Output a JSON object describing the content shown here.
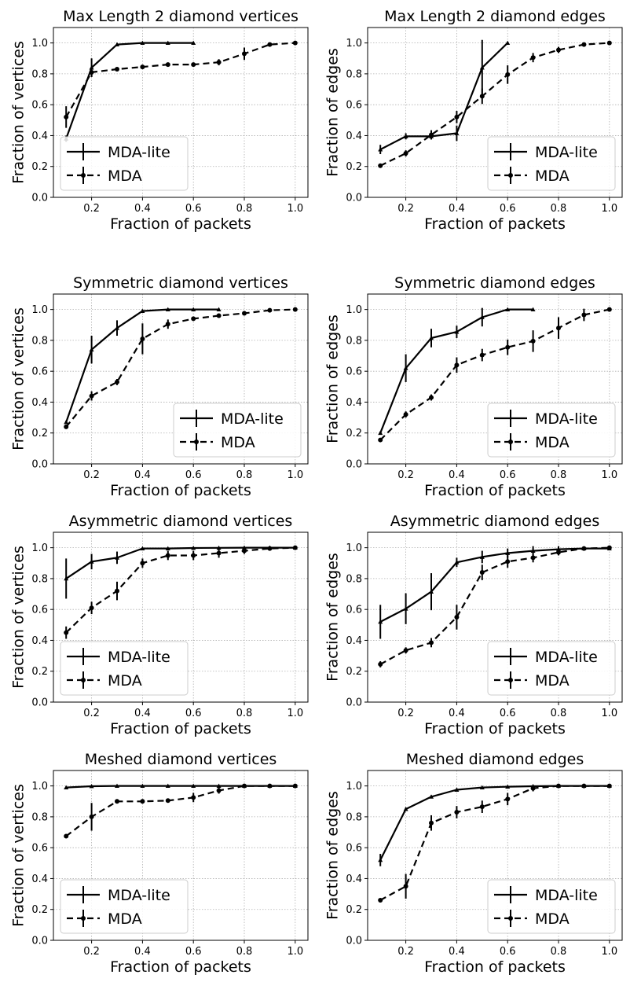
{
  "chart_data": [
    {
      "type": "line",
      "title": "Max Length 2 diamond vertices",
      "xlabel": "Fraction of packets",
      "ylabel": "Fraction of vertices",
      "xlim": [
        0.05,
        1.05
      ],
      "ylim": [
        0.0,
        1.1
      ],
      "xticks": [
        "0.2",
        "0.4",
        "0.6",
        "0.8",
        "1.0"
      ],
      "yticks": [
        "0.0",
        "0.2",
        "0.4",
        "0.6",
        "0.8",
        "1.0"
      ],
      "grid": true,
      "legend": "bottom-left",
      "series": [
        {
          "name": "MDA-lite",
          "style": "solid",
          "marker": "triangle",
          "x": [
            0.1,
            0.2,
            0.3,
            0.4,
            0.5,
            0.6
          ],
          "y": [
            0.38,
            0.84,
            0.99,
            1.0,
            1.0,
            1.0
          ],
          "err": [
            0.02,
            0.06,
            0.01,
            0.0,
            0.0,
            0.0
          ]
        },
        {
          "name": "MDA",
          "style": "dashed",
          "marker": "circle",
          "x": [
            0.1,
            0.2,
            0.3,
            0.4,
            0.5,
            0.6,
            0.7,
            0.8,
            0.9,
            1.0
          ],
          "y": [
            0.52,
            0.81,
            0.83,
            0.845,
            0.86,
            0.86,
            0.875,
            0.93,
            0.99,
            1.0
          ],
          "err": [
            0.07,
            0.03,
            0.01,
            0.01,
            0.01,
            0.01,
            0.02,
            0.04,
            0.01,
            0.0
          ]
        }
      ]
    },
    {
      "type": "line",
      "title": "Max Length 2 diamond edges",
      "xlabel": "Fraction of packets",
      "ylabel": "Fraction of edges",
      "xlim": [
        0.05,
        1.05
      ],
      "ylim": [
        0.0,
        1.1
      ],
      "xticks": [
        "0.2",
        "0.4",
        "0.6",
        "0.8",
        "1.0"
      ],
      "yticks": [
        "0.0",
        "0.2",
        "0.4",
        "0.6",
        "0.8",
        "1.0"
      ],
      "grid": true,
      "legend": "bottom-right",
      "series": [
        {
          "name": "MDA-lite",
          "style": "solid",
          "marker": "triangle",
          "x": [
            0.1,
            0.2,
            0.3,
            0.4,
            0.5,
            0.6
          ],
          "y": [
            0.31,
            0.395,
            0.395,
            0.415,
            0.84,
            1.0
          ],
          "err": [
            0.03,
            0.02,
            0.02,
            0.05,
            0.18,
            0.0
          ]
        },
        {
          "name": "MDA",
          "style": "dashed",
          "marker": "circle",
          "x": [
            0.1,
            0.2,
            0.3,
            0.4,
            0.5,
            0.6,
            0.7,
            0.8,
            0.9,
            1.0
          ],
          "y": [
            0.205,
            0.285,
            0.405,
            0.52,
            0.655,
            0.795,
            0.905,
            0.955,
            0.99,
            1.0
          ],
          "err": [
            0.01,
            0.02,
            0.03,
            0.04,
            0.05,
            0.06,
            0.03,
            0.02,
            0.01,
            0.0
          ]
        }
      ]
    },
    {
      "type": "line",
      "title": "Symmetric diamond vertices",
      "xlabel": "Fraction of packets",
      "ylabel": "Fraction of vertices",
      "xlim": [
        0.05,
        1.05
      ],
      "ylim": [
        0.0,
        1.1
      ],
      "xticks": [
        "0.2",
        "0.4",
        "0.6",
        "0.8",
        "1.0"
      ],
      "yticks": [
        "0.0",
        "0.2",
        "0.4",
        "0.6",
        "0.8",
        "1.0"
      ],
      "grid": true,
      "legend": "bottom-right",
      "series": [
        {
          "name": "MDA-lite",
          "style": "solid",
          "marker": "triangle",
          "x": [
            0.1,
            0.2,
            0.3,
            0.4,
            0.5,
            0.6,
            0.7
          ],
          "y": [
            0.27,
            0.74,
            0.88,
            0.99,
            1.0,
            1.0,
            1.0
          ],
          "err": [
            0.01,
            0.09,
            0.05,
            0.01,
            0.0,
            0.0,
            0.0
          ]
        },
        {
          "name": "MDA",
          "style": "dashed",
          "marker": "circle",
          "x": [
            0.1,
            0.2,
            0.3,
            0.4,
            0.5,
            0.6,
            0.7,
            0.8,
            0.9,
            1.0
          ],
          "y": [
            0.24,
            0.44,
            0.53,
            0.81,
            0.905,
            0.94,
            0.96,
            0.975,
            0.995,
            1.0
          ],
          "err": [
            0.01,
            0.03,
            0.02,
            0.1,
            0.03,
            0.01,
            0.01,
            0.01,
            0.005,
            0.0
          ]
        }
      ]
    },
    {
      "type": "line",
      "title": "Symmetric diamond edges",
      "xlabel": "Fraction of packets",
      "ylabel": "Fraction of edges",
      "xlim": [
        0.05,
        1.05
      ],
      "ylim": [
        0.0,
        1.1
      ],
      "xticks": [
        "0.2",
        "0.4",
        "0.6",
        "0.8",
        "1.0"
      ],
      "yticks": [
        "0.0",
        "0.2",
        "0.4",
        "0.6",
        "0.8",
        "1.0"
      ],
      "grid": true,
      "legend": "bottom-right",
      "series": [
        {
          "name": "MDA-lite",
          "style": "solid",
          "marker": "triangle",
          "x": [
            0.1,
            0.2,
            0.3,
            0.4,
            0.5,
            0.6,
            0.7
          ],
          "y": [
            0.2,
            0.62,
            0.815,
            0.855,
            0.95,
            1.0,
            1.0
          ],
          "err": [
            0.01,
            0.09,
            0.06,
            0.04,
            0.06,
            0.0,
            0.0
          ]
        },
        {
          "name": "MDA",
          "style": "dashed",
          "marker": "circle",
          "x": [
            0.1,
            0.2,
            0.3,
            0.4,
            0.5,
            0.6,
            0.7,
            0.8,
            0.9,
            1.0
          ],
          "y": [
            0.155,
            0.32,
            0.43,
            0.64,
            0.705,
            0.755,
            0.795,
            0.88,
            0.965,
            1.0
          ],
          "err": [
            0.01,
            0.02,
            0.02,
            0.05,
            0.04,
            0.05,
            0.07,
            0.07,
            0.04,
            0.0
          ]
        }
      ]
    },
    {
      "type": "line",
      "title": "Asymmetric diamond vertices",
      "xlabel": "Fraction of packets",
      "ylabel": "Fraction of vertices",
      "xlim": [
        0.05,
        1.05
      ],
      "ylim": [
        0.0,
        1.1
      ],
      "xticks": [
        "0.2",
        "0.4",
        "0.6",
        "0.8",
        "1.0"
      ],
      "yticks": [
        "0.0",
        "0.2",
        "0.4",
        "0.6",
        "0.8",
        "1.0"
      ],
      "grid": true,
      "legend": "bottom-left",
      "series": [
        {
          "name": "MDA-lite",
          "style": "solid",
          "marker": "triangle",
          "x": [
            0.1,
            0.2,
            0.3,
            0.4,
            0.5,
            0.6,
            0.7,
            0.8,
            0.9,
            1.0
          ],
          "y": [
            0.8,
            0.91,
            0.935,
            0.995,
            0.995,
            0.998,
            0.999,
            1.0,
            1.0,
            1.0
          ],
          "err": [
            0.13,
            0.05,
            0.04,
            0.005,
            0.005,
            0.004,
            0.003,
            0.0,
            0.0,
            0.0
          ]
        },
        {
          "name": "MDA",
          "style": "dashed",
          "marker": "circle",
          "x": [
            0.1,
            0.2,
            0.3,
            0.4,
            0.5,
            0.6,
            0.7,
            0.8,
            0.9,
            1.0
          ],
          "y": [
            0.45,
            0.61,
            0.72,
            0.9,
            0.95,
            0.95,
            0.965,
            0.98,
            0.995,
            1.0
          ],
          "err": [
            0.04,
            0.04,
            0.06,
            0.03,
            0.03,
            0.03,
            0.03,
            0.02,
            0.005,
            0.0
          ]
        }
      ]
    },
    {
      "type": "line",
      "title": "Asymmetric diamond edges",
      "xlabel": "Fraction of packets",
      "ylabel": "Fraction of edges",
      "xlim": [
        0.05,
        1.05
      ],
      "ylim": [
        0.0,
        1.1
      ],
      "xticks": [
        "0.2",
        "0.4",
        "0.6",
        "0.8",
        "1.0"
      ],
      "yticks": [
        "0.0",
        "0.2",
        "0.4",
        "0.6",
        "0.8",
        "1.0"
      ],
      "grid": true,
      "legend": "bottom-right",
      "series": [
        {
          "name": "MDA-lite",
          "style": "solid",
          "marker": "triangle",
          "x": [
            0.1,
            0.2,
            0.3,
            0.4,
            0.5,
            0.6,
            0.7,
            0.8,
            0.9,
            1.0
          ],
          "y": [
            0.52,
            0.605,
            0.715,
            0.905,
            0.94,
            0.965,
            0.98,
            0.99,
            0.995,
            0.995
          ],
          "err": [
            0.11,
            0.1,
            0.12,
            0.03,
            0.04,
            0.03,
            0.03,
            0.02,
            0.01,
            0.005
          ]
        },
        {
          "name": "MDA",
          "style": "dashed",
          "marker": "circle",
          "x": [
            0.1,
            0.2,
            0.3,
            0.4,
            0.5,
            0.6,
            0.7,
            0.8,
            0.9,
            1.0
          ],
          "y": [
            0.245,
            0.335,
            0.385,
            0.55,
            0.84,
            0.91,
            0.935,
            0.97,
            0.995,
            1.0
          ],
          "err": [
            0.02,
            0.02,
            0.03,
            0.08,
            0.05,
            0.04,
            0.03,
            0.02,
            0.005,
            0.0
          ]
        }
      ]
    },
    {
      "type": "line",
      "title": "Meshed diamond vertices",
      "xlabel": "Fraction of packets",
      "ylabel": "Fraction of vertices",
      "xlim": [
        0.05,
        1.05
      ],
      "ylim": [
        0.0,
        1.1
      ],
      "xticks": [
        "0.2",
        "0.4",
        "0.6",
        "0.8",
        "1.0"
      ],
      "yticks": [
        "0.0",
        "0.2",
        "0.4",
        "0.6",
        "0.8",
        "1.0"
      ],
      "grid": true,
      "legend": "bottom-left",
      "series": [
        {
          "name": "MDA-lite",
          "style": "solid",
          "marker": "triangle",
          "x": [
            0.1,
            0.2,
            0.3,
            0.4,
            0.5,
            0.6,
            0.7,
            0.8,
            0.9,
            1.0
          ],
          "y": [
            0.99,
            0.998,
            1.0,
            1.0,
            1.0,
            1.0,
            1.0,
            1.0,
            1.0,
            1.0
          ],
          "err": [
            0.005,
            0.002,
            0.0,
            0.0,
            0.0,
            0.0,
            0.0,
            0.0,
            0.0,
            0.0
          ]
        },
        {
          "name": "MDA",
          "style": "dashed",
          "marker": "circle",
          "x": [
            0.1,
            0.2,
            0.3,
            0.4,
            0.5,
            0.6,
            0.7,
            0.8,
            0.9,
            1.0
          ],
          "y": [
            0.675,
            0.8,
            0.9,
            0.9,
            0.905,
            0.925,
            0.97,
            1.0,
            1.0,
            1.0
          ],
          "err": [
            0.01,
            0.09,
            0.01,
            0.01,
            0.01,
            0.03,
            0.02,
            0.0,
            0.0,
            0.0
          ]
        }
      ]
    },
    {
      "type": "line",
      "title": "Meshed diamond edges",
      "xlabel": "Fraction of packets",
      "ylabel": "Fraction of edges",
      "xlim": [
        0.05,
        1.05
      ],
      "ylim": [
        0.0,
        1.1
      ],
      "xticks": [
        "0.2",
        "0.4",
        "0.6",
        "0.8",
        "1.0"
      ],
      "yticks": [
        "0.0",
        "0.2",
        "0.4",
        "0.6",
        "0.8",
        "1.0"
      ],
      "grid": true,
      "legend": "bottom-right",
      "series": [
        {
          "name": "MDA-lite",
          "style": "solid",
          "marker": "triangle",
          "x": [
            0.1,
            0.2,
            0.3,
            0.4,
            0.5,
            0.6,
            0.7,
            0.8,
            0.9,
            1.0
          ],
          "y": [
            0.52,
            0.85,
            0.93,
            0.975,
            0.99,
            0.995,
            0.998,
            1.0,
            1.0,
            1.0
          ],
          "err": [
            0.04,
            0.01,
            0.01,
            0.01,
            0.005,
            0.003,
            0.002,
            0.0,
            0.0,
            0.0
          ]
        },
        {
          "name": "MDA",
          "style": "dashed",
          "marker": "circle",
          "x": [
            0.1,
            0.2,
            0.3,
            0.4,
            0.5,
            0.6,
            0.7,
            0.8,
            0.9,
            1.0
          ],
          "y": [
            0.26,
            0.35,
            0.76,
            0.83,
            0.865,
            0.915,
            0.985,
            1.0,
            1.0,
            1.0
          ],
          "err": [
            0.01,
            0.08,
            0.05,
            0.04,
            0.04,
            0.04,
            0.02,
            0.0,
            0.0,
            0.0
          ]
        }
      ]
    }
  ]
}
